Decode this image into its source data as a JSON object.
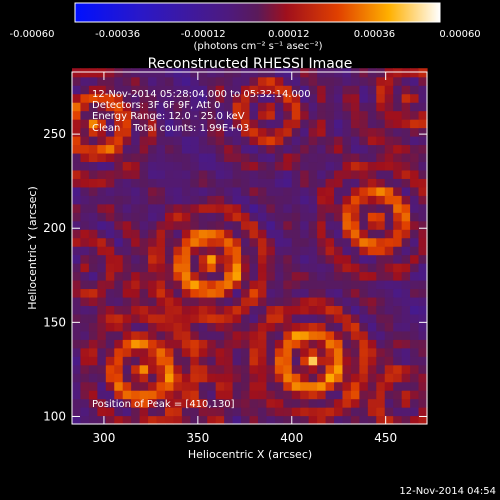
{
  "chart_data": {
    "type": "heatmap",
    "title": "Reconstructed RHESSI Image",
    "xlabel": "Heliocentric X (arcsec)",
    "ylabel": "Heliocentric Y (arcsec)",
    "xlim": [
      283,
      472
    ],
    "ylim": [
      96,
      283
    ],
    "xticks": [
      300,
      350,
      400,
      450
    ],
    "yticks": [
      100,
      150,
      200,
      250
    ],
    "colorbar": {
      "ticks": [
        "-0.00060",
        "-0.00036",
        "-0.00012",
        "0.00012",
        "0.00036",
        "0.00060"
      ],
      "range": [
        -0.0006,
        0.0006
      ],
      "unit_label": "(photons cm⁻² s⁻¹ asec⁻²)"
    },
    "annotations": {
      "time_range": "12-Nov-2014 05:28:04.000 to 05:32:14.000",
      "detectors": "Detectors: 3F 6F 9F, Att 0",
      "energy": "Energy Range: 12.0 - 25.0 keV",
      "clean": "Clean    Total counts: 1.99E+03",
      "peak": "Position of Peak = [410,130]"
    },
    "timestamp": "12-Nov-2014 04:54",
    "blobs": [
      {
        "x": 356,
        "y": 182,
        "value": 0.0006
      },
      {
        "x": 445,
        "y": 205,
        "value": 0.00052
      },
      {
        "x": 410,
        "y": 130,
        "value": 0.0006
      },
      {
        "x": 320,
        "y": 125,
        "value": 0.00048
      },
      {
        "x": 296,
        "y": 255,
        "value": 0.0005
      },
      {
        "x": 387,
        "y": 262,
        "value": 0.00038
      },
      {
        "x": 462,
        "y": 270,
        "value": 0.00034
      },
      {
        "x": 460,
        "y": 110,
        "value": 0.0003
      },
      {
        "x": 290,
        "y": 180,
        "value": 0.00026
      },
      {
        "x": 350,
        "y": 108,
        "value": 0.00022
      }
    ]
  }
}
